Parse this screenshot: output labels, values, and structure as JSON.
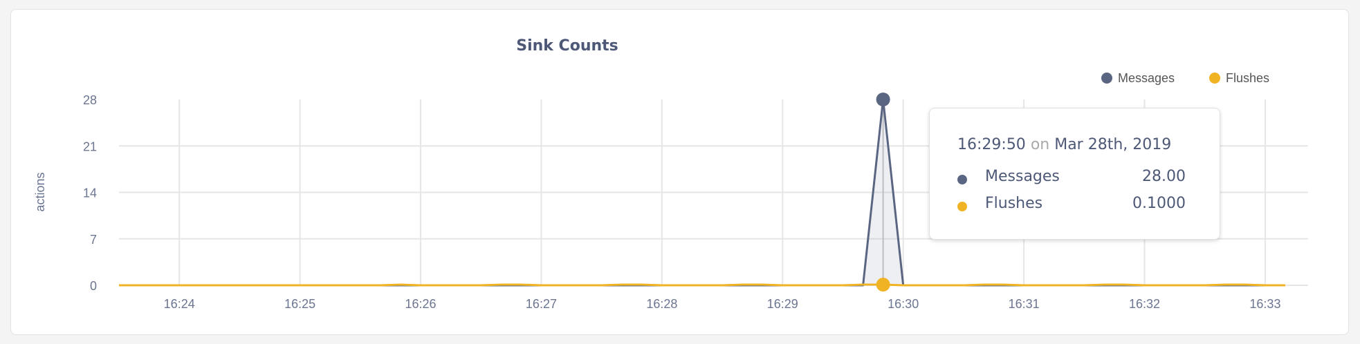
{
  "chart_data": {
    "type": "area",
    "title": "Sink Counts",
    "ylabel": "actions",
    "xlabel": "",
    "ylim": [
      0,
      28
    ],
    "yticks": [
      "0",
      "7",
      "14",
      "21",
      "28"
    ],
    "xlim": [
      "16:23:30",
      "16:33:10"
    ],
    "xticks": [
      "16:24",
      "16:25",
      "16:26",
      "16:27",
      "16:28",
      "16:29",
      "16:30",
      "16:31",
      "16:32",
      "16:33"
    ],
    "grid": true,
    "legend_position": "top-right",
    "series": [
      {
        "name": "Messages",
        "color": "#5a6582",
        "default_value": 0,
        "points": [
          [
            "16:29:40",
            0
          ],
          [
            "16:29:50",
            28
          ],
          [
            "16:30:00",
            0
          ]
        ]
      },
      {
        "name": "Flushes",
        "color": "#f0b323",
        "default_value": 0,
        "points": [
          [
            "16:25:50",
            0.1
          ],
          [
            "16:26:40",
            0.1
          ],
          [
            "16:26:50",
            0.1
          ],
          [
            "16:27:40",
            0.1
          ],
          [
            "16:27:50",
            0.1
          ],
          [
            "16:28:40",
            0.1
          ],
          [
            "16:28:50",
            0.1
          ],
          [
            "16:29:40",
            0.1
          ],
          [
            "16:29:50",
            0.1
          ],
          [
            "16:30:40",
            0.1
          ],
          [
            "16:30:50",
            0.1
          ],
          [
            "16:31:40",
            0.1
          ],
          [
            "16:31:50",
            0.1
          ],
          [
            "16:32:40",
            0.1
          ],
          [
            "16:32:50",
            0.1
          ]
        ]
      }
    ],
    "highlight": "16:29:50"
  },
  "tooltip": {
    "time": "16:29:50",
    "on": "on",
    "date": "Mar 28th, 2019",
    "rows": [
      {
        "name": "Messages",
        "value": "28.00",
        "color": "#5a6582"
      },
      {
        "name": "Flushes",
        "value": "0.1000",
        "color": "#f0b323"
      }
    ]
  }
}
